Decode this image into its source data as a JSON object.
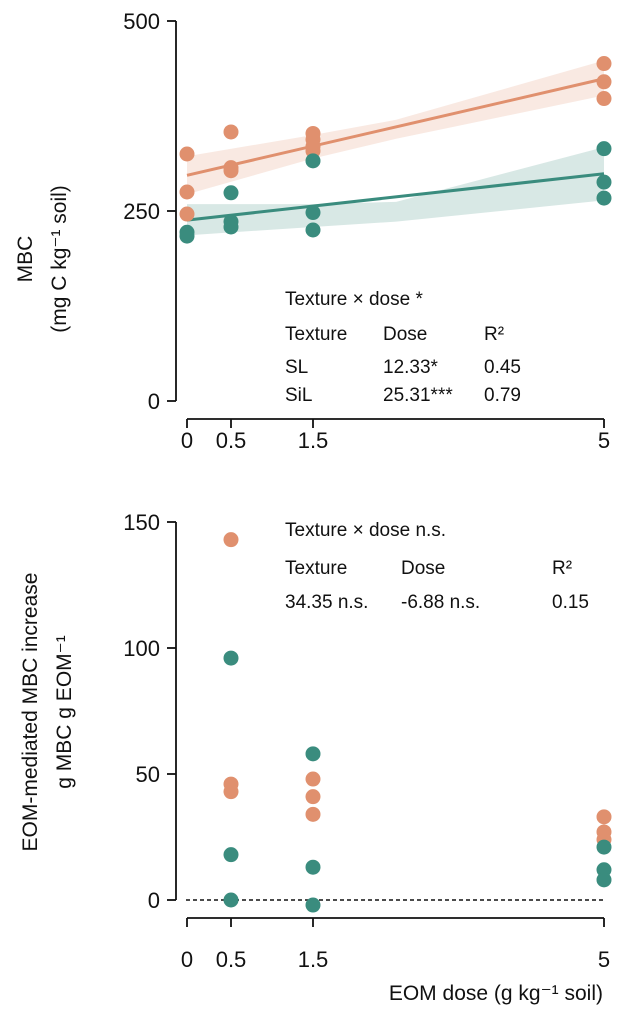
{
  "colors": {
    "SL": "#3a8c7e",
    "SiL": "#e0906e",
    "SL_band": "#3a8c7e",
    "SiL_band": "#e0906e",
    "axis": "#111111",
    "background": "#ffffff"
  },
  "chart_data": [
    {
      "type": "scatter",
      "xlabel": "",
      "ylabel_line1": "MBC",
      "ylabel_line2": "(mg C kg⁻¹ soil)",
      "xlim": [
        0,
        5
      ],
      "ylim": [
        0,
        500
      ],
      "x_ticks": [
        0,
        0.5,
        1.5,
        5
      ],
      "x_tick_labels": [
        "0",
        "0.5",
        "1.5",
        "5"
      ],
      "y_ticks": [
        0,
        250,
        500
      ],
      "y_tick_labels": [
        "0",
        "250",
        "500"
      ],
      "series": [
        {
          "name": "SL",
          "color": "#3a8c7e",
          "points": [
            {
              "x": 0,
              "y": 222
            },
            {
              "x": 0,
              "y": 217
            },
            {
              "x": 0.5,
              "y": 274
            },
            {
              "x": 0.5,
              "y": 236
            },
            {
              "x": 0.5,
              "y": 229
            },
            {
              "x": 1.5,
              "y": 316
            },
            {
              "x": 1.5,
              "y": 248
            },
            {
              "x": 1.5,
              "y": 225
            },
            {
              "x": 5,
              "y": 332
            },
            {
              "x": 5,
              "y": 288
            },
            {
              "x": 5,
              "y": 267
            }
          ],
          "fit": {
            "x0": 0,
            "y0": 238,
            "x1": 5,
            "y1": 299
          },
          "band": {
            "lower": [
              218,
              229,
              236,
              264
            ],
            "upper": [
              259,
              259,
              262,
              334
            ],
            "x": [
              0,
              1.5,
              2.5,
              5
            ]
          }
        },
        {
          "name": "SiL",
          "color": "#e0906e",
          "points": [
            {
              "x": 0,
              "y": 325
            },
            {
              "x": 0,
              "y": 275
            },
            {
              "x": 0,
              "y": 246
            },
            {
              "x": 0.5,
              "y": 354
            },
            {
              "x": 0.5,
              "y": 307
            },
            {
              "x": 0.5,
              "y": 303
            },
            {
              "x": 1.5,
              "y": 352
            },
            {
              "x": 1.5,
              "y": 344
            },
            {
              "x": 1.5,
              "y": 335
            },
            {
              "x": 1.5,
              "y": 329
            },
            {
              "x": 5,
              "y": 444
            },
            {
              "x": 5,
              "y": 420
            },
            {
              "x": 5,
              "y": 398
            }
          ],
          "fit": {
            "x0": 0,
            "y0": 297,
            "x1": 5,
            "y1": 424
          },
          "band": {
            "lower": [
              272,
              319,
              345,
              402
            ],
            "upper": [
              322,
              350,
              370,
              448
            ],
            "x": [
              0,
              1.5,
              2.5,
              5
            ]
          }
        }
      ],
      "annotation": {
        "heading": "Texture × dose *",
        "col_headers": [
          "Texture",
          "Dose",
          "R²"
        ],
        "rows": [
          {
            "texture": "SL",
            "dose": "12.33*",
            "r2": "0.45"
          },
          {
            "texture": "SiL",
            "dose": "25.31***",
            "r2": "0.79"
          }
        ]
      }
    },
    {
      "type": "scatter",
      "xlabel": "EOM dose (g kg⁻¹ soil)",
      "ylabel_line1": "EOM-mediated MBC increase",
      "ylabel_line2": "g MBC g EOM⁻¹",
      "xlim": [
        0,
        5
      ],
      "ylim": [
        0,
        150
      ],
      "x_ticks": [
        0,
        0.5,
        1.5,
        5
      ],
      "x_tick_labels": [
        "0",
        "0.5",
        "1.5",
        "5"
      ],
      "y_ticks": [
        0,
        50,
        100,
        150
      ],
      "y_tick_labels": [
        "0",
        "50",
        "100",
        "150"
      ],
      "zero_reference_line": true,
      "series": [
        {
          "name": "SL",
          "color": "#3a8c7e",
          "points": [
            {
              "x": 0.5,
              "y": 96
            },
            {
              "x": 0.5,
              "y": 18
            },
            {
              "x": 0.5,
              "y": 0
            },
            {
              "x": 1.5,
              "y": 58
            },
            {
              "x": 1.5,
              "y": 13
            },
            {
              "x": 1.5,
              "y": -2
            },
            {
              "x": 5,
              "y": 21
            },
            {
              "x": 5,
              "y": 12
            },
            {
              "x": 5,
              "y": 8
            }
          ]
        },
        {
          "name": "SiL",
          "color": "#e0906e",
          "points": [
            {
              "x": 0.5,
              "y": 143
            },
            {
              "x": 0.5,
              "y": 46
            },
            {
              "x": 0.5,
              "y": 43
            },
            {
              "x": 1.5,
              "y": 48
            },
            {
              "x": 1.5,
              "y": 41
            },
            {
              "x": 1.5,
              "y": 34
            },
            {
              "x": 5,
              "y": 33
            },
            {
              "x": 5,
              "y": 27
            },
            {
              "x": 5,
              "y": 24
            }
          ]
        }
      ],
      "annotation": {
        "heading": "Texture × dose n.s.",
        "col_headers": [
          "Texture",
          "Dose",
          "R²"
        ],
        "rows": [
          {
            "texture": "34.35 n.s.",
            "dose": "-6.88 n.s.",
            "r2": "0.15"
          }
        ]
      }
    }
  ]
}
